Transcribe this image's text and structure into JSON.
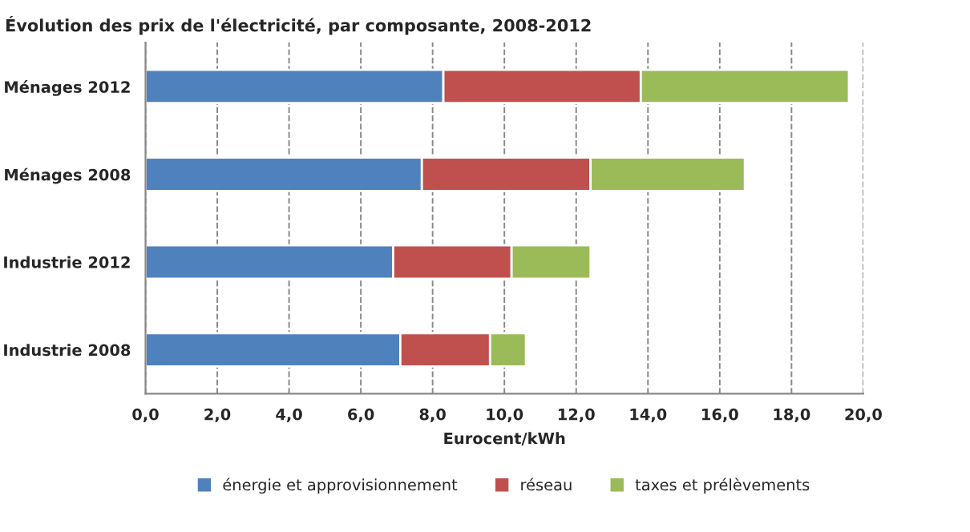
{
  "chart_data": {
    "type": "bar",
    "orientation": "horizontal",
    "stacked": true,
    "title": "Évolution des prix de l'électricité, par composante, 2008-2012",
    "xlabel": "Eurocent/kWh",
    "categories": [
      "Ménages 2012",
      "Ménages 2008",
      "Industrie 2012",
      "Industrie 2008"
    ],
    "series": [
      {
        "name": "énergie et approvisionnement",
        "color": "#4f81bd",
        "values": [
          8.3,
          7.7,
          6.9,
          7.1
        ]
      },
      {
        "name": "réseau",
        "color": "#c0504d",
        "values": [
          5.5,
          4.7,
          3.3,
          2.5
        ]
      },
      {
        "name": "taxes et prélèvements",
        "color": "#9bbb59",
        "values": [
          5.8,
          4.3,
          2.2,
          1.0
        ]
      }
    ],
    "xlim": [
      0,
      20
    ],
    "xticks": [
      {
        "value": 0,
        "label": "0,0"
      },
      {
        "value": 2,
        "label": "2,0"
      },
      {
        "value": 4,
        "label": "4,0"
      },
      {
        "value": 6,
        "label": "6,0"
      },
      {
        "value": 8,
        "label": "8,0"
      },
      {
        "value": 10,
        "label": "10,0"
      },
      {
        "value": 12,
        "label": "12,0"
      },
      {
        "value": 14,
        "label": "14,0"
      },
      {
        "value": 16,
        "label": "16,0"
      },
      {
        "value": 18,
        "label": "18,0"
      },
      {
        "value": 20,
        "label": "20,0"
      }
    ],
    "grid": "x",
    "legend": "bottom"
  }
}
